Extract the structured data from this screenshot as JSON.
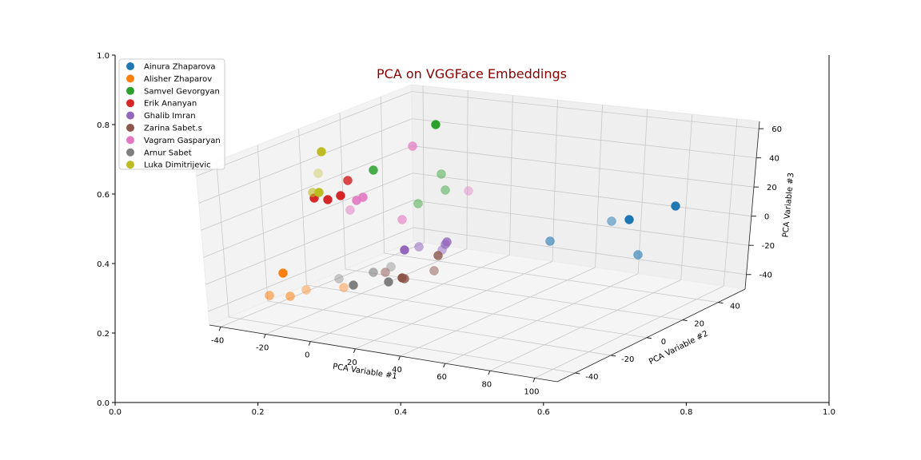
{
  "chart_data": {
    "type": "scatter3d",
    "title": "PCA on VGGFace Embeddings",
    "title_color": "#8b0000",
    "xlabel": "PCA Variable #1",
    "ylabel": "PCA Variable #2",
    "zlabel": "PCA Variable #3",
    "x_ticks": [
      "-40",
      "-20",
      "0",
      "20",
      "40",
      "60",
      "80",
      "100"
    ],
    "y_ticks": [
      "-40",
      "-20",
      "0",
      "20",
      "40"
    ],
    "z_ticks": [
      "-40",
      "-20",
      "0",
      "20",
      "40",
      "60"
    ],
    "outer_x_ticks": [
      "0.0",
      "0.2",
      "0.4",
      "0.6",
      "0.8",
      "1.0"
    ],
    "outer_y_ticks": [
      "0.0",
      "0.2",
      "0.4",
      "0.6",
      "0.8",
      "1.0"
    ],
    "legend_position": "top-left",
    "grid": true,
    "series": [
      {
        "name": "Ainura Zhaparova",
        "color": "#1f77b4"
      },
      {
        "name": "Alisher Zhaparov",
        "color": "#ff7f0e"
      },
      {
        "name": "Samvel Gevorgyan",
        "color": "#2ca02c"
      },
      {
        "name": "Erik Ananyan",
        "color": "#d62728"
      },
      {
        "name": "Ghalib Imran",
        "color": "#9467bd"
      },
      {
        "name": "Zarina Sabet.s",
        "color": "#8c564b"
      },
      {
        "name": "Vagram Gasparyan",
        "color": "#e377c2"
      },
      {
        "name": "Arnur Sabet",
        "color": "#7f7f7f"
      },
      {
        "name": "Luka Dimitrijevic",
        "color": "#bcbd22"
      }
    ]
  }
}
